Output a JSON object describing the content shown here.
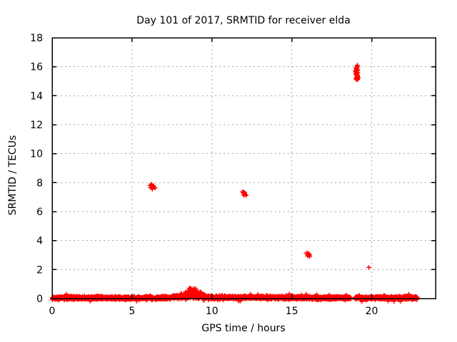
{
  "window": {
    "background_color": "#ffffff"
  },
  "chart_data": {
    "type": "scatter",
    "title": "Day 101 of 2017, SRMTID for receiver elda",
    "xlabel": "GPS time / hours",
    "ylabel": "SRMTID / TECUs",
    "xlim": [
      0,
      24
    ],
    "ylim": [
      0,
      18
    ],
    "xticks": [
      0,
      5,
      10,
      15,
      20
    ],
    "yticks": [
      0,
      2,
      4,
      6,
      8,
      10,
      12,
      14,
      16,
      18
    ],
    "grid": "on",
    "legend": "none",
    "marker": "plus",
    "colors": {
      "series": "#ff0000",
      "grid": "#a8a8a8",
      "axis": "#000000",
      "text": "#000000"
    },
    "series": [
      {
        "name": "SRMTID",
        "style": "red plus markers",
        "outlier_clusters": [
          {
            "x": 6.27,
            "y": 7.7,
            "x_spread": 0.13,
            "y_spread": 0.13,
            "n_points": 14
          },
          {
            "x": 12.05,
            "y": 7.25,
            "x_spread": 0.12,
            "y_spread": 0.1,
            "n_points": 12
          },
          {
            "x": 16.02,
            "y": 3.0,
            "x_spread": 0.11,
            "y_spread": 0.09,
            "n_points": 10
          },
          {
            "x": 19.07,
            "y": 15.55,
            "x_spread": 0.07,
            "y_spread": 0.42,
            "n_points": 36
          },
          {
            "x": 19.82,
            "y": 2.15,
            "x_spread": 0.0,
            "y_spread": 0.0,
            "n_points": 1
          }
        ],
        "baseline_band": {
          "x_start": 0,
          "x_end": 22.85,
          "gap_x": [
            18.7,
            18.97
          ],
          "y_mean": 0.05,
          "y_typical_range": [
            -0.25,
            0.35
          ],
          "sample_step_hours": 0.00833,
          "bump": {
            "x_start": 7.6,
            "x_end": 9.7,
            "peak_x": 8.9,
            "peak_y": 0.7
          },
          "minor_bump": {
            "x_center": 12.5,
            "extra": 0.08
          }
        }
      }
    ]
  }
}
